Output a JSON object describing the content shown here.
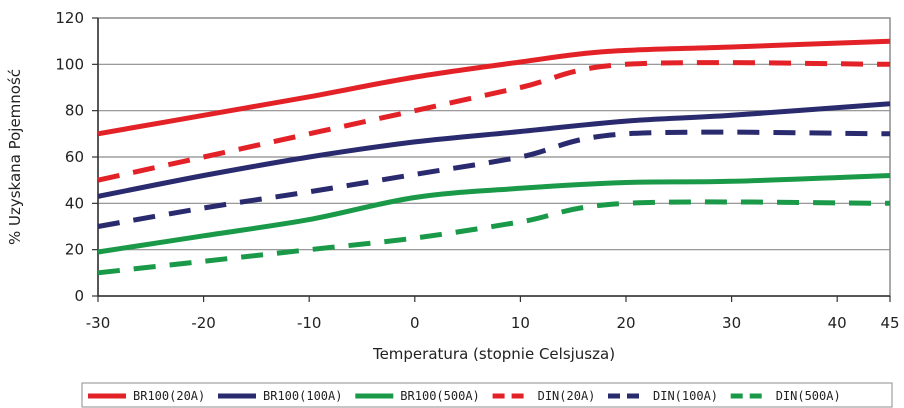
{
  "chart_data": {
    "type": "line",
    "xlabel": "Temperatura (stopnie Celsjusza)",
    "ylabel": "% Uzyskana Pojemność",
    "xlim": [
      -30,
      45
    ],
    "ylim": [
      0,
      120
    ],
    "x_ticks": [
      -30,
      -20,
      -10,
      0,
      10,
      20,
      30,
      40,
      45
    ],
    "y_ticks": [
      0,
      20,
      40,
      60,
      80,
      100,
      120
    ],
    "grid": "horizontal",
    "legend_position": "bottom",
    "series": [
      {
        "name": "BR100(20A)",
        "color": "#e32228",
        "style": "solid",
        "points": [
          [
            -30,
            70
          ],
          [
            -20,
            78
          ],
          [
            -10,
            86
          ],
          [
            0,
            94.5
          ],
          [
            10,
            101
          ],
          [
            18,
            105.5
          ],
          [
            30,
            107.5
          ],
          [
            45,
            110
          ]
        ]
      },
      {
        "name": "BR100(100A)",
        "color": "#2a2a6e",
        "style": "solid",
        "points": [
          [
            -30,
            43
          ],
          [
            -20,
            52
          ],
          [
            -10,
            60
          ],
          [
            0,
            66.5
          ],
          [
            10,
            71
          ],
          [
            20,
            75.5
          ],
          [
            30,
            78
          ],
          [
            45,
            83
          ]
        ]
      },
      {
        "name": "BR100(500A)",
        "color": "#1a9a48",
        "style": "solid",
        "points": [
          [
            -30,
            19
          ],
          [
            -20,
            26
          ],
          [
            -10,
            33
          ],
          [
            0,
            42.5
          ],
          [
            10,
            46.5
          ],
          [
            20,
            49
          ],
          [
            30,
            49.5
          ],
          [
            45,
            52
          ]
        ]
      },
      {
        "name": "DIN(20A)",
        "color": "#e32228",
        "style": "dashed",
        "points": [
          [
            -30,
            50
          ],
          [
            -20,
            60
          ],
          [
            -10,
            70
          ],
          [
            0,
            80
          ],
          [
            10,
            90
          ],
          [
            20,
            100
          ],
          [
            45,
            100
          ]
        ]
      },
      {
        "name": "DIN(100A)",
        "color": "#2a2a6e",
        "style": "dashed",
        "points": [
          [
            -30,
            30
          ],
          [
            -20,
            38
          ],
          [
            -10,
            45
          ],
          [
            0,
            52.5
          ],
          [
            10,
            60
          ],
          [
            20,
            70
          ],
          [
            45,
            70
          ]
        ]
      },
      {
        "name": "DIN(500A)",
        "color": "#1a9a48",
        "style": "dashed",
        "points": [
          [
            -30,
            10
          ],
          [
            -20,
            15
          ],
          [
            -10,
            20
          ],
          [
            0,
            25
          ],
          [
            10,
            32
          ],
          [
            20,
            40
          ],
          [
            45,
            40
          ]
        ]
      }
    ]
  }
}
